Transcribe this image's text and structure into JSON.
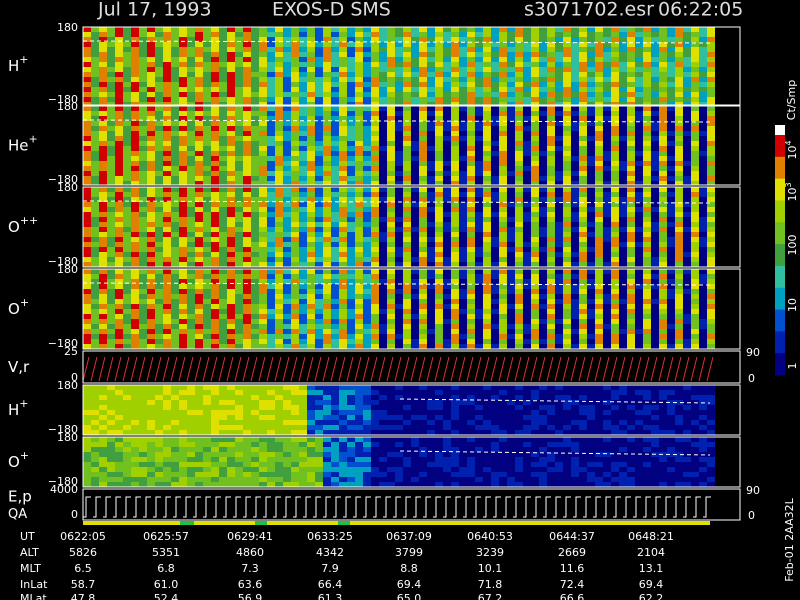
{
  "header": {
    "date": "Jul 17, 1993",
    "instrument": "EXOS-D SMS",
    "file": "s3071702.esr",
    "time": "06:22:05"
  },
  "panels": [
    {
      "label": "H",
      "sup": "+",
      "top": "180",
      "bottom": "−180"
    },
    {
      "label": "He",
      "sup": "+",
      "top": "180",
      "bottom": "−180"
    },
    {
      "label": "O",
      "sup": "++",
      "top": "180",
      "bottom": "−180"
    },
    {
      "label": "O",
      "sup": "+",
      "top": "180",
      "bottom": "−180"
    },
    {
      "label": "V,r",
      "top": "25",
      "bottom": "0",
      "right_top": "90",
      "right_bottom": "0"
    },
    {
      "label": "H",
      "sup": "+",
      "top": "180",
      "bottom": "−180"
    },
    {
      "label": "O",
      "sup": "+",
      "top": "180",
      "bottom": "−180"
    },
    {
      "label": "E,p",
      "label2": "QA",
      "top": "4000",
      "bottom": "0",
      "right_top": "90",
      "right_bottom": "0"
    }
  ],
  "colorbar": {
    "unit": "Ct/Smp",
    "labels": [
      {
        "base": "10",
        "exp": "4"
      },
      {
        "base": "10",
        "exp": "3"
      },
      {
        "base": "100"
      },
      {
        "base": "10"
      },
      {
        "base": "1"
      }
    ]
  },
  "table": {
    "rows": [
      {
        "label": "UT",
        "values": [
          "0622:05",
          "0625:57",
          "0629:41",
          "0633:25",
          "0637:09",
          "0640:53",
          "0644:37",
          "0648:21"
        ]
      },
      {
        "label": "ALT",
        "values": [
          "5826",
          "5351",
          "4860",
          "4342",
          "3799",
          "3239",
          "2669",
          "2104"
        ]
      },
      {
        "label": "MLT",
        "values": [
          "6.5",
          "6.8",
          "7.3",
          "7.9",
          "8.8",
          "10.1",
          "11.6",
          "13.1"
        ]
      },
      {
        "label": "InLat",
        "values": [
          "58.7",
          "61.0",
          "63.6",
          "66.4",
          "69.4",
          "71.8",
          "72.4",
          "69.4"
        ]
      },
      {
        "label": "MLat",
        "values": [
          "47.8",
          "52.4",
          "56.9",
          "61.3",
          "65.0",
          "67.2",
          "66.6",
          "62.2"
        ]
      }
    ]
  },
  "footer": "Feb-01 2AA32L"
}
